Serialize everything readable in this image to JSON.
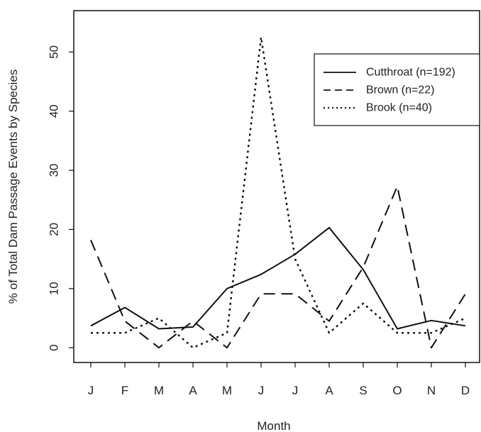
{
  "chart_data": {
    "type": "line",
    "xlabel": "Month",
    "ylabel": "% of Total Dam Passage Events by Species",
    "categories": [
      "J",
      "F",
      "M",
      "A",
      "M",
      "J",
      "J",
      "A",
      "S",
      "O",
      "N",
      "D"
    ],
    "ylim": [
      -2.5,
      57
    ],
    "yticks": [
      0,
      10,
      20,
      30,
      40,
      50
    ],
    "grid": false,
    "legend_position": "top-right",
    "series": [
      {
        "name": "Cutthroat (n=192)",
        "linestyle": "solid",
        "color": "#111111",
        "values": [
          3.7,
          6.8,
          3.2,
          3.5,
          10.0,
          12.4,
          15.8,
          20.3,
          13.2,
          3.2,
          4.6,
          3.7
        ]
      },
      {
        "name": "Brown (n=22)",
        "linestyle": "dashed",
        "color": "#111111",
        "values": [
          18.2,
          4.5,
          0.0,
          4.5,
          0.0,
          9.1,
          9.1,
          4.5,
          13.6,
          27.3,
          0.0,
          9.1
        ]
      },
      {
        "name": "Brook (n=40)",
        "linestyle": "dotted",
        "color": "#111111",
        "values": [
          2.5,
          2.5,
          5.0,
          0.0,
          2.5,
          52.5,
          15.0,
          2.5,
          7.5,
          2.5,
          2.5,
          5.0
        ]
      }
    ]
  }
}
